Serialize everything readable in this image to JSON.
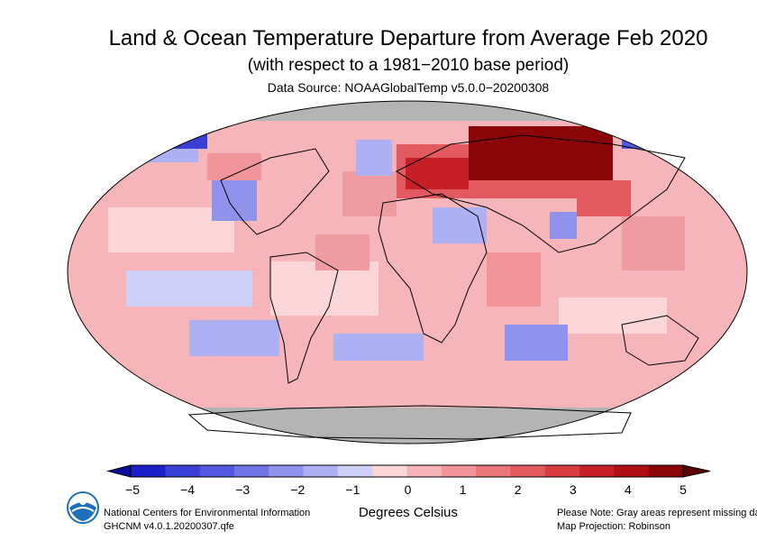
{
  "header": {
    "title": "Land & Ocean Temperature Departure from Average Feb 2020",
    "subtitle": "(with respect to a 1981−2010 base period)",
    "source": "Data Source: NOAAGlobalTemp v5.0.0−20200308"
  },
  "legend": {
    "title": "Degrees Celsius",
    "ticks": [
      "−5",
      "−4",
      "−3",
      "−2",
      "−1",
      "0",
      "1",
      "2",
      "3",
      "4",
      "5"
    ],
    "colors": [
      "#1c20c8",
      "#3a3fd6",
      "#5458e0",
      "#7075e6",
      "#8f93ec",
      "#adb0f2",
      "#cfd0f8",
      "#fbd6d8",
      "#f6b3b6",
      "#f19599",
      "#ea777c",
      "#e25a60",
      "#d83c43",
      "#c71f27",
      "#b00e15",
      "#8a0508"
    ],
    "missing_color": "#b4b4b4"
  },
  "footer": {
    "org_line1": "National Centers for Environmental Information",
    "org_line2": "GHCNM v4.0.1.20200307.qfe",
    "note_line1": "Please Note: Gray areas represent missing data",
    "note_line2": "Map Projection: Robinson",
    "logo_text": "NOAA"
  }
}
